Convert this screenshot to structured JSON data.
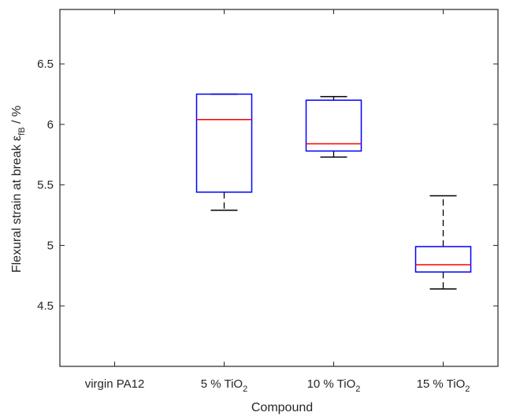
{
  "chart_data": {
    "type": "box",
    "xlabel": "Compound",
    "ylabel": "Flexural strain at break ε",
    "ylabel_sub": "fB",
    "ylabel_suffix": " / %",
    "ylim": [
      4.0,
      6.95
    ],
    "yticks": [
      "4.5",
      "5",
      "5.5",
      "6",
      "6.5"
    ],
    "yticks_values": [
      4.5,
      5.0,
      5.5,
      6.0,
      6.5
    ],
    "categories": [
      {
        "label": "virgin PA12",
        "label_base": "virgin PA12",
        "label_sub": ""
      },
      {
        "label": "5 % TiO2",
        "label_base": "5 % TiO",
        "label_sub": "2"
      },
      {
        "label": "10 % TiO2",
        "label_base": "10 % TiO",
        "label_sub": "2"
      },
      {
        "label": "15 % TiO2",
        "label_base": "15 % TiO",
        "label_sub": "2"
      }
    ],
    "boxes": [
      null,
      {
        "whisker_low": 5.29,
        "q1": 5.44,
        "median": 6.04,
        "q3": 6.25,
        "whisker_high": 6.25
      },
      {
        "whisker_low": 5.73,
        "q1": 5.78,
        "median": 5.84,
        "q3": 6.2,
        "whisker_high": 6.23
      },
      {
        "whisker_low": 4.64,
        "q1": 4.78,
        "median": 4.84,
        "q3": 4.99,
        "whisker_high": 5.41
      }
    ],
    "colors": {
      "box": "#0000ff",
      "median": "#ff0000",
      "whisker": "#000000",
      "axis": "#262626"
    },
    "grid": false,
    "legend": "none"
  }
}
